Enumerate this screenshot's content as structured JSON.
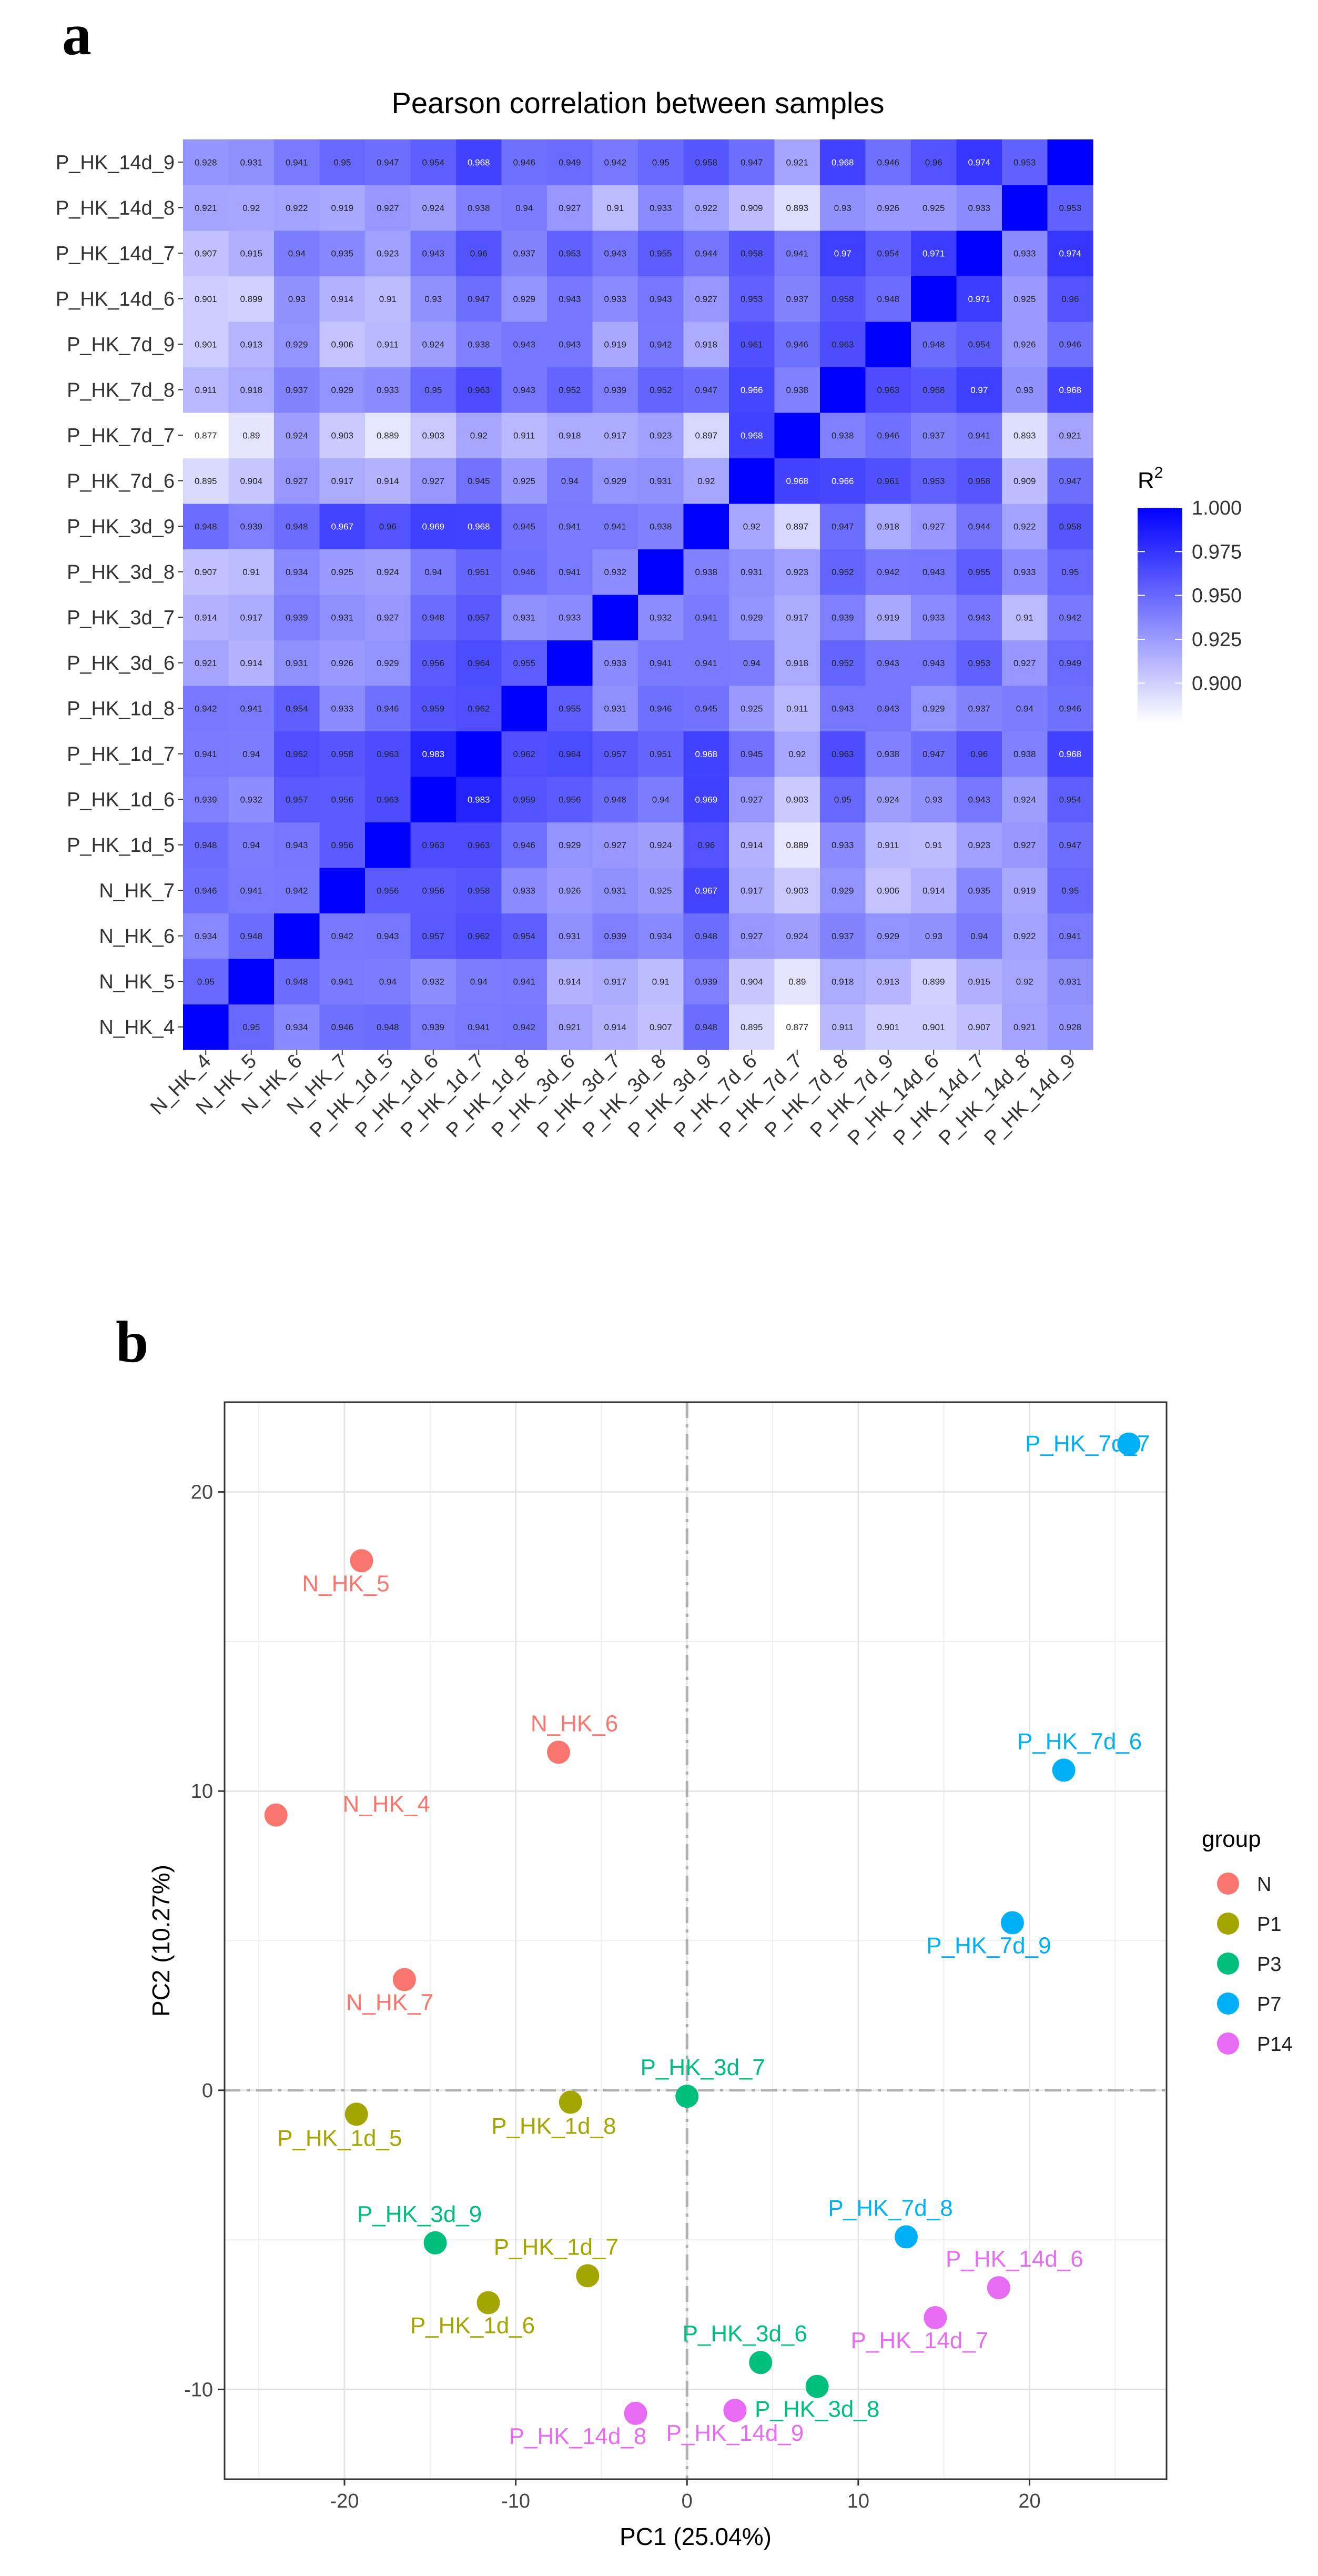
{
  "panel_labels": {
    "a": "a",
    "b": "b"
  },
  "chart_data": [
    {
      "type": "heatmap",
      "title": "Pearson correlation between samples",
      "samples": [
        "N_HK_4",
        "N_HK_5",
        "N_HK_6",
        "N_HK_7",
        "P_HK_1d_5",
        "P_HK_1d_6",
        "P_HK_1d_7",
        "P_HK_1d_8",
        "P_HK_3d_6",
        "P_HK_3d_7",
        "P_HK_3d_8",
        "P_HK_3d_9",
        "P_HK_7d_6",
        "P_HK_7d_7",
        "P_HK_7d_8",
        "P_HK_7d_9",
        "P_HK_14d_6",
        "P_HK_14d_7",
        "P_HK_14d_8",
        "P_HK_14d_9"
      ],
      "matrix": [
        [
          "",
          "0.95",
          "0.934",
          "0.946",
          "0.948",
          "0.939",
          "0.941",
          "0.942",
          "0.921",
          "0.914",
          "0.907",
          "0.948",
          "0.895",
          "0.877",
          "0.911",
          "0.901",
          "0.901",
          "0.907",
          "0.921",
          "0.928"
        ],
        [
          "0.95",
          "",
          "0.948",
          "0.941",
          "0.94",
          "0.932",
          "0.94",
          "0.941",
          "0.914",
          "0.917",
          "0.91",
          "0.939",
          "0.904",
          "0.89",
          "0.918",
          "0.913",
          "0.899",
          "0.915",
          "0.92",
          "0.931"
        ],
        [
          "0.934",
          "0.948",
          "",
          "0.942",
          "0.943",
          "0.957",
          "0.962",
          "0.954",
          "0.931",
          "0.939",
          "0.934",
          "0.948",
          "0.927",
          "0.924",
          "0.937",
          "0.929",
          "0.93",
          "0.94",
          "0.922",
          "0.941"
        ],
        [
          "0.946",
          "0.941",
          "0.942",
          "",
          "0.956",
          "0.956",
          "0.958",
          "0.933",
          "0.926",
          "0.931",
          "0.925",
          "0.967",
          "0.917",
          "0.903",
          "0.929",
          "0.906",
          "0.914",
          "0.935",
          "0.919",
          "0.95"
        ],
        [
          "0.948",
          "0.94",
          "0.943",
          "0.956",
          "",
          "0.963",
          "0.963",
          "0.946",
          "0.929",
          "0.927",
          "0.924",
          "0.96",
          "0.914",
          "0.889",
          "0.933",
          "0.911",
          "0.91",
          "0.923",
          "0.927",
          "0.947"
        ],
        [
          "0.939",
          "0.932",
          "0.957",
          "0.956",
          "0.963",
          "",
          "0.983",
          "0.959",
          "0.956",
          "0.948",
          "0.94",
          "0.969",
          "0.927",
          "0.903",
          "0.95",
          "0.924",
          "0.93",
          "0.943",
          "0.924",
          "0.954"
        ],
        [
          "0.941",
          "0.94",
          "0.962",
          "0.958",
          "0.963",
          "0.983",
          "",
          "0.962",
          "0.964",
          "0.957",
          "0.951",
          "0.968",
          "0.945",
          "0.92",
          "0.963",
          "0.938",
          "0.947",
          "0.96",
          "0.938",
          "0.968"
        ],
        [
          "0.942",
          "0.941",
          "0.954",
          "0.933",
          "0.946",
          "0.959",
          "0.962",
          "",
          "0.955",
          "0.931",
          "0.946",
          "0.945",
          "0.925",
          "0.911",
          "0.943",
          "0.943",
          "0.929",
          "0.937",
          "0.94",
          "0.946"
        ],
        [
          "0.921",
          "0.914",
          "0.931",
          "0.926",
          "0.929",
          "0.956",
          "0.964",
          "0.955",
          "",
          "0.933",
          "0.941",
          "0.941",
          "0.94",
          "0.918",
          "0.952",
          "0.943",
          "0.943",
          "0.953",
          "0.927",
          "0.949"
        ],
        [
          "0.914",
          "0.917",
          "0.939",
          "0.931",
          "0.927",
          "0.948",
          "0.957",
          "0.931",
          "0.933",
          "",
          "0.932",
          "0.941",
          "0.929",
          "0.917",
          "0.939",
          "0.919",
          "0.933",
          "0.943",
          "0.91",
          "0.942"
        ],
        [
          "0.907",
          "0.91",
          "0.934",
          "0.925",
          "0.924",
          "0.94",
          "0.951",
          "0.946",
          "0.941",
          "0.932",
          "",
          "0.938",
          "0.931",
          "0.923",
          "0.952",
          "0.942",
          "0.943",
          "0.955",
          "0.933",
          "0.95"
        ],
        [
          "0.948",
          "0.939",
          "0.948",
          "0.967",
          "0.96",
          "0.969",
          "0.968",
          "0.945",
          "0.941",
          "0.941",
          "0.938",
          "",
          "0.92",
          "0.897",
          "0.947",
          "0.918",
          "0.927",
          "0.944",
          "0.922",
          "0.958"
        ],
        [
          "0.895",
          "0.904",
          "0.927",
          "0.917",
          "0.914",
          "0.927",
          "0.945",
          "0.925",
          "0.94",
          "0.929",
          "0.931",
          "0.92",
          "",
          "0.968",
          "0.966",
          "0.961",
          "0.953",
          "0.958",
          "0.909",
          "0.947"
        ],
        [
          "0.877",
          "0.89",
          "0.924",
          "0.903",
          "0.889",
          "0.903",
          "0.92",
          "0.911",
          "0.918",
          "0.917",
          "0.923",
          "0.897",
          "0.968",
          "",
          "0.938",
          "0.946",
          "0.937",
          "0.941",
          "0.893",
          "0.921"
        ],
        [
          "0.911",
          "0.918",
          "0.937",
          "0.929",
          "0.933",
          "0.95",
          "0.963",
          "0.943",
          "0.952",
          "0.939",
          "0.952",
          "0.947",
          "0.966",
          "0.938",
          "",
          "0.963",
          "0.958",
          "0.97",
          "0.93",
          "0.968"
        ],
        [
          "0.901",
          "0.913",
          "0.929",
          "0.906",
          "0.911",
          "0.924",
          "0.938",
          "0.943",
          "0.943",
          "0.919",
          "0.942",
          "0.918",
          "0.961",
          "0.946",
          "0.963",
          "",
          "0.948",
          "0.954",
          "0.926",
          "0.946"
        ],
        [
          "0.901",
          "0.899",
          "0.93",
          "0.914",
          "0.91",
          "0.93",
          "0.947",
          "0.929",
          "0.943",
          "0.933",
          "0.943",
          "0.927",
          "0.953",
          "0.937",
          "0.958",
          "0.948",
          "",
          "0.971",
          "0.925",
          "0.96"
        ],
        [
          "0.907",
          "0.915",
          "0.94",
          "0.935",
          "0.923",
          "0.943",
          "0.96",
          "0.937",
          "0.953",
          "0.943",
          "0.955",
          "0.944",
          "0.958",
          "0.941",
          "0.97",
          "0.954",
          "0.971",
          "",
          "0.933",
          "0.974"
        ],
        [
          "0.921",
          "0.92",
          "0.922",
          "0.919",
          "0.927",
          "0.924",
          "0.938",
          "0.94",
          "0.927",
          "0.91",
          "0.933",
          "0.922",
          "0.909",
          "0.893",
          "0.93",
          "0.926",
          "0.925",
          "0.933",
          "",
          "0.953"
        ],
        [
          "0.928",
          "0.931",
          "0.941",
          "0.95",
          "0.947",
          "0.954",
          "0.968",
          "0.946",
          "0.949",
          "0.942",
          "0.95",
          "0.958",
          "0.947",
          "0.921",
          "0.968",
          "0.946",
          "0.96",
          "0.974",
          "0.953",
          ""
        ]
      ],
      "legend_title": "R²",
      "legend_ticks": [
        "1.000",
        "0.975",
        "0.950",
        "0.925",
        "0.900"
      ],
      "color_range": [
        0.877,
        1.0
      ],
      "colors": {
        "low": "#ffffff",
        "high": "#0000ff"
      }
    },
    {
      "type": "scatter",
      "xlabel": "PC1 (25.04%)",
      "ylabel": "PC2 (10.27%)",
      "xlim": [
        -27,
        28
      ],
      "ylim": [
        -13,
        23
      ],
      "xticks": [
        "-20",
        "-10",
        "0",
        "10",
        "20"
      ],
      "yticks": [
        "-10",
        "0",
        "10",
        "20"
      ],
      "legend_title": "group",
      "groups": [
        {
          "name": "N",
          "color": "#f8766d"
        },
        {
          "name": "P1",
          "color": "#a3a500"
        },
        {
          "name": "P3",
          "color": "#00bf7d"
        },
        {
          "name": "P7",
          "color": "#00b0f6"
        },
        {
          "name": "P14",
          "color": "#e76bf3"
        }
      ],
      "points": [
        {
          "label": "N_HK_4",
          "group": "N",
          "x": -24,
          "y": 9.2
        },
        {
          "label": "N_HK_5",
          "group": "N",
          "x": -19,
          "y": 17.7
        },
        {
          "label": "N_HK_6",
          "group": "N",
          "x": -7.5,
          "y": 11.3
        },
        {
          "label": "N_HK_7",
          "group": "N",
          "x": -16.5,
          "y": 3.7
        },
        {
          "label": "P_HK_1d_5",
          "group": "P1",
          "x": -19.3,
          "y": -0.8
        },
        {
          "label": "P_HK_1d_6",
          "group": "P1",
          "x": -11.6,
          "y": -7.1
        },
        {
          "label": "P_HK_1d_7",
          "group": "P1",
          "x": -5.8,
          "y": -6.2
        },
        {
          "label": "P_HK_1d_8",
          "group": "P1",
          "x": -6.8,
          "y": -0.4
        },
        {
          "label": "P_HK_3d_6",
          "group": "P3",
          "x": 4.3,
          "y": -9.1
        },
        {
          "label": "P_HK_3d_7",
          "group": "P3",
          "x": 0,
          "y": -0.2
        },
        {
          "label": "P_HK_3d_8",
          "group": "P3",
          "x": 7.6,
          "y": -9.9
        },
        {
          "label": "P_HK_3d_9",
          "group": "P3",
          "x": -14.7,
          "y": -5.1
        },
        {
          "label": "P_HK_7d_6",
          "group": "P7",
          "x": 22,
          "y": 10.7
        },
        {
          "label": "P_HK_7d_7",
          "group": "P7",
          "x": 25.8,
          "y": 21.6
        },
        {
          "label": "P_HK_7d_8",
          "group": "P7",
          "x": 12.8,
          "y": -4.9
        },
        {
          "label": "P_HK_7d_9",
          "group": "P7",
          "x": 19,
          "y": 5.6
        },
        {
          "label": "P_HK_14d_6",
          "group": "P14",
          "x": 18.2,
          "y": -6.6
        },
        {
          "label": "P_HK_14d_7",
          "group": "P14",
          "x": 14.5,
          "y": -7.6
        },
        {
          "label": "P_HK_14d_8",
          "group": "P14",
          "x": -3,
          "y": -10.8
        },
        {
          "label": "P_HK_14d_9",
          "group": "P14",
          "x": 2.8,
          "y": -10.7
        }
      ]
    }
  ]
}
